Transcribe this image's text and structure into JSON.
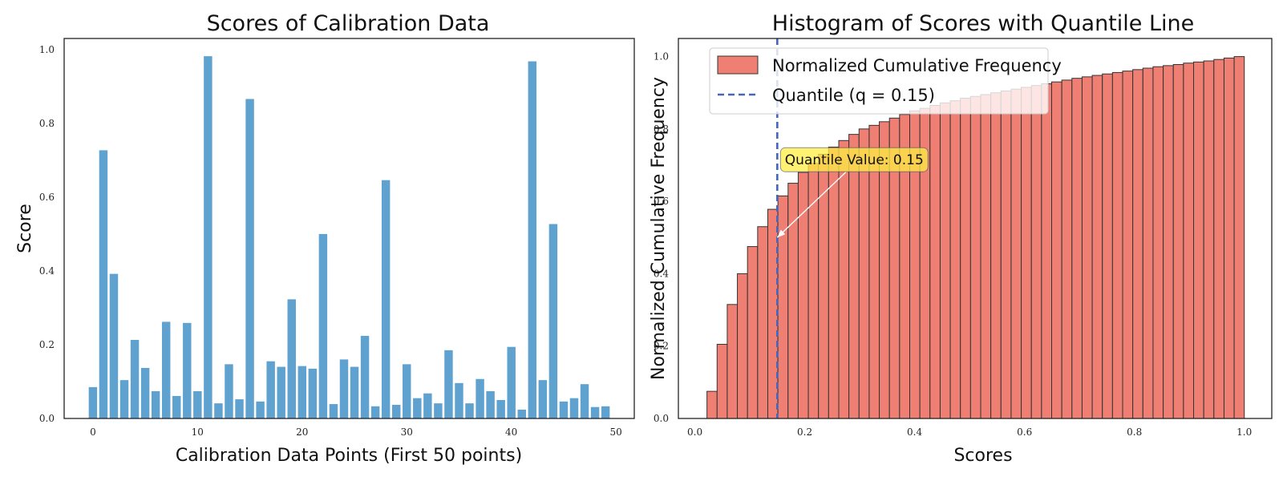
{
  "chart_data": [
    {
      "type": "bar",
      "title": "Scores of Calibration Data",
      "xlabel": "Calibration Data Points (First 50 points)",
      "ylabel": "Score",
      "xlim": [
        -2.75,
        51.75
      ],
      "ylim": [
        0,
        1.03
      ],
      "xticks": [
        0,
        10,
        20,
        30,
        40,
        50
      ],
      "yticks": [
        0.0,
        0.2,
        0.4,
        0.6,
        0.8,
        1.0
      ],
      "bar_color": "#5fa2d0",
      "grid": false,
      "x": [
        0,
        1,
        2,
        3,
        4,
        5,
        6,
        7,
        8,
        9,
        10,
        11,
        12,
        13,
        14,
        15,
        16,
        17,
        18,
        19,
        20,
        21,
        22,
        23,
        24,
        25,
        26,
        27,
        28,
        29,
        30,
        31,
        32,
        33,
        34,
        35,
        36,
        37,
        38,
        39,
        40,
        41,
        42,
        43,
        44,
        45,
        46,
        47,
        48,
        49
      ],
      "values": [
        0.085,
        0.727,
        0.392,
        0.104,
        0.213,
        0.137,
        0.074,
        0.262,
        0.061,
        0.259,
        0.074,
        0.982,
        0.041,
        0.147,
        0.052,
        0.866,
        0.046,
        0.155,
        0.14,
        0.323,
        0.142,
        0.135,
        0.5,
        0.039,
        0.16,
        0.14,
        0.224,
        0.033,
        0.646,
        0.037,
        0.147,
        0.055,
        0.068,
        0.041,
        0.185,
        0.096,
        0.041,
        0.107,
        0.074,
        0.05,
        0.194,
        0.024,
        0.968,
        0.104,
        0.527,
        0.046,
        0.055,
        0.093,
        0.031,
        0.033
      ]
    },
    {
      "type": "bar",
      "title": "Histogram of Scores with Quantile Line",
      "xlabel": "Scores",
      "ylabel": "Normalized Cumulative Frequency",
      "xlim": [
        -0.03,
        1.05
      ],
      "ylim": [
        0,
        1.05
      ],
      "xticks": [
        0.0,
        0.2,
        0.4,
        0.6,
        0.8,
        1.0
      ],
      "yticks": [
        0.0,
        0.2,
        0.4,
        0.6,
        0.8,
        1.0
      ],
      "bar_color": "#f07f73",
      "edge_color": "#333333",
      "bin_start": 0.022,
      "bin_end": 1.0,
      "values": [
        0.075,
        0.205,
        0.315,
        0.4,
        0.475,
        0.53,
        0.578,
        0.615,
        0.65,
        0.68,
        0.705,
        0.73,
        0.75,
        0.768,
        0.785,
        0.8,
        0.81,
        0.82,
        0.83,
        0.84,
        0.85,
        0.857,
        0.865,
        0.872,
        0.878,
        0.885,
        0.89,
        0.895,
        0.9,
        0.905,
        0.91,
        0.915,
        0.92,
        0.925,
        0.93,
        0.935,
        0.94,
        0.944,
        0.948,
        0.952,
        0.956,
        0.96,
        0.964,
        0.968,
        0.972,
        0.975,
        0.978,
        0.982,
        0.985,
        0.988,
        0.992,
        0.996,
        1.0
      ],
      "quantile_x": 0.15,
      "quantile_color": "#4466bb",
      "legend": {
        "position": "top-left",
        "hist_label": "Normalized Cumulative Frequency",
        "line_label": "Quantile (q = 0.15)"
      },
      "annotation": {
        "text": "Quantile Value: 0.15",
        "point_x": 0.15,
        "point_y": 0.5,
        "text_x": 0.29,
        "text_y": 0.715,
        "box_color": "#ffee44"
      }
    }
  ]
}
